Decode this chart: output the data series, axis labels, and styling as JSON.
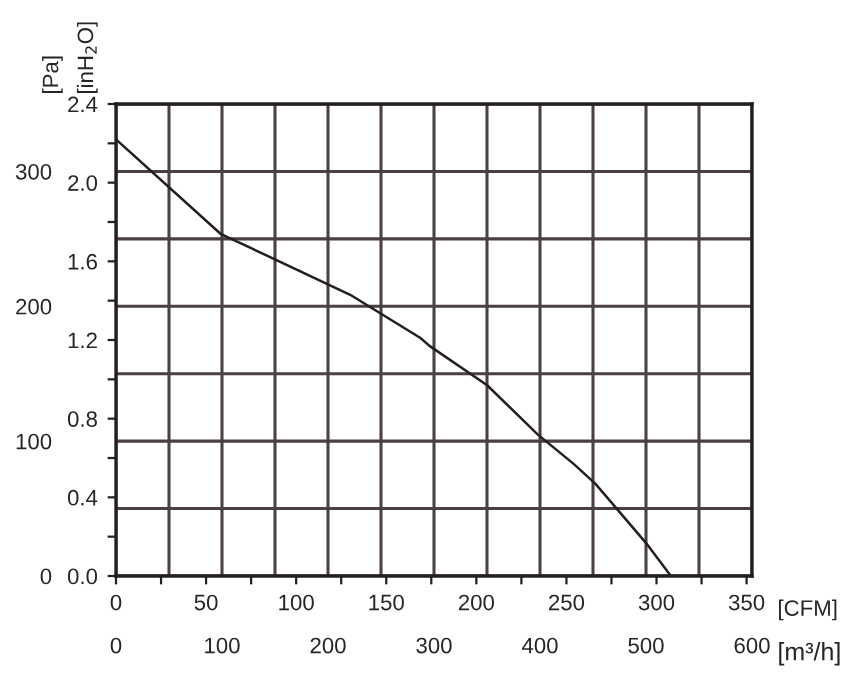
{
  "chart_data": {
    "type": "line",
    "xlabel": "[CFM]",
    "ylabel": "[inH$_{2}$O]",
    "y2label": "[Pa]",
    "x2label": "[m³/h]",
    "x": [
      0,
      58,
      130,
      169,
      174,
      206,
      234,
      254,
      266,
      280,
      294,
      308
    ],
    "series": [
      {
        "color": "#231f20",
        "values": [
          2.22,
          1.74,
          1.43,
          1.21,
          1.17,
          0.97,
          0.72,
          0.57,
          0.47,
          0.32,
          0.17,
          0.0
        ]
      }
    ],
    "xlim": [
      0,
      353
    ],
    "ylim": [
      0,
      2.4
    ],
    "xticks": [
      0,
      {
        "value": 25,
        "label": null
      },
      50,
      {
        "value": 75,
        "label": null
      },
      100,
      {
        "value": 125,
        "label": null
      },
      150,
      {
        "value": 175,
        "label": null
      },
      200,
      {
        "value": 225,
        "label": null
      },
      250,
      {
        "value": 275,
        "label": null
      },
      300,
      {
        "value": 325,
        "label": null
      },
      350
    ],
    "yticks": [
      {
        "value": 0,
        "label": "0.0"
      },
      {
        "value": 0.2,
        "label": null
      },
      {
        "value": 0.4,
        "label": "0.4"
      },
      {
        "value": 0.6,
        "label": null
      },
      {
        "value": 0.8,
        "label": "0.8"
      },
      {
        "value": 1.0,
        "label": null
      },
      {
        "value": 1.2,
        "label": "1.2"
      },
      {
        "value": 1.4,
        "label": null
      },
      {
        "value": 1.6,
        "label": "1.6"
      },
      {
        "value": 1.8,
        "label": null
      },
      {
        "value": 2.0,
        "label": "2.0"
      },
      {
        "value": 2.2,
        "label": null
      },
      {
        "value": 2.4,
        "label": "2.4"
      }
    ],
    "y2lim": [
      0,
      350
    ],
    "y2ticks": [
      0,
      {
        "value": 50,
        "label": null
      },
      100,
      {
        "value": 150,
        "label": null
      },
      200,
      {
        "value": 250,
        "label": null
      },
      300,
      {
        "value": 350,
        "label": null
      }
    ],
    "x2lim": [
      0,
      600
    ],
    "x2ticks": [
      0,
      {
        "value": 50,
        "label": null
      },
      100,
      {
        "value": 150,
        "label": null
      },
      200,
      {
        "value": 250,
        "label": null
      },
      300,
      {
        "value": 350,
        "label": null
      },
      400,
      {
        "value": 450,
        "label": null
      },
      500,
      {
        "value": 550,
        "label": null
      },
      600
    ],
    "grid": true,
    "legend": false,
    "marker": "none",
    "line_style": "solid"
  }
}
